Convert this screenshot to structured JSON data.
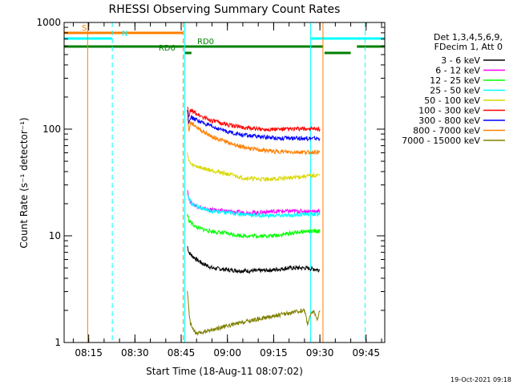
{
  "chart_data": {
    "type": "line",
    "title": "RHESSI Observing Summary Count Rates",
    "xlabel": "Start Time (18-Aug-11 08:07:02)",
    "ylabel": "Count Rate (s⁻¹ detector⁻¹)",
    "yscale": "log",
    "ylim": [
      1,
      1000
    ],
    "xlim": [
      "08:07:02",
      "09:51:02"
    ],
    "x_tick_labels": [
      "08:15",
      "08:30",
      "08:45",
      "09:00",
      "09:15",
      "09:30",
      "09:45"
    ],
    "y_tick_labels": [
      "1",
      "10",
      "100",
      "1000"
    ],
    "legend": {
      "placement": "right",
      "header": [
        "Det 1,3,4,5,6,9,",
        "FDecim 1, Att 0"
      ]
    },
    "series": [
      {
        "name": "3 - 6 keV",
        "color": "#000000",
        "x": [
          "08:47:00",
          "08:47:30",
          "08:48:30",
          "08:50:00",
          "08:52:00",
          "08:55:00",
          "09:00:00",
          "09:05:00",
          "09:10:00",
          "09:15:00",
          "09:20:00",
          "09:25:00",
          "09:30:00"
        ],
        "values": [
          8,
          7,
          6.5,
          6,
          5.5,
          5,
          4.8,
          4.7,
          4.7,
          4.8,
          5,
          5,
          4.8
        ]
      },
      {
        "name": "6 - 12 keV",
        "color": "#ff00ff",
        "x": [
          "08:47:00",
          "08:47:30",
          "08:48:30",
          "08:50:00",
          "08:52:00",
          "08:55:00",
          "09:00:00",
          "09:05:00",
          "09:10:00",
          "09:15:00",
          "09:20:00",
          "09:25:00",
          "09:30:00"
        ],
        "values": [
          28,
          22,
          20,
          19,
          18,
          17.5,
          17,
          16.5,
          16.5,
          17,
          17,
          17,
          17
        ]
      },
      {
        "name": "12 - 25 keV",
        "color": "#00ff00",
        "x": [
          "08:47:00",
          "08:47:30",
          "08:48:30",
          "08:50:00",
          "08:52:00",
          "08:55:00",
          "09:00:00",
          "09:05:00",
          "09:10:00",
          "09:15:00",
          "09:20:00",
          "09:25:00",
          "09:30:00"
        ],
        "values": [
          16,
          14,
          13,
          12,
          11.5,
          11,
          10.5,
          10,
          10,
          10,
          10.5,
          11,
          11
        ]
      },
      {
        "name": "25 - 50 keV",
        "color": "#00ffff",
        "x": [
          "08:47:00",
          "08:47:30",
          "08:48:30",
          "08:50:00",
          "08:52:00",
          "08:55:00",
          "09:00:00",
          "09:05:00",
          "09:10:00",
          "09:15:00",
          "09:20:00",
          "09:25:00",
          "09:30:00"
        ],
        "values": [
          26,
          22,
          20,
          19,
          18,
          17,
          16.5,
          16,
          15.5,
          15.5,
          15.5,
          16,
          16
        ]
      },
      {
        "name": "50 - 100 keV",
        "color": "#d8d800",
        "x": [
          "08:47:00",
          "08:47:30",
          "08:48:30",
          "08:50:00",
          "08:52:00",
          "08:55:00",
          "09:00:00",
          "09:05:00",
          "09:10:00",
          "09:15:00",
          "09:20:00",
          "09:25:00",
          "09:30:00"
        ],
        "values": [
          60,
          50,
          46,
          45,
          43,
          41,
          38,
          35,
          34,
          34,
          35,
          36,
          37
        ]
      },
      {
        "name": "100 - 300 keV",
        "color": "#ff0000",
        "x": [
          "08:47:00",
          "08:47:30",
          "08:48:00",
          "08:49:00",
          "08:50:00",
          "08:52:00",
          "08:55:00",
          "09:00:00",
          "09:05:00",
          "09:10:00",
          "09:15:00",
          "09:20:00",
          "09:25:00",
          "09:30:00"
        ],
        "values": [
          165,
          125,
          150,
          145,
          140,
          130,
          120,
          110,
          104,
          100,
          100,
          100,
          101,
          100
        ]
      },
      {
        "name": "300 - 800 keV",
        "color": "#0000ff",
        "x": [
          "08:47:00",
          "08:47:30",
          "08:48:00",
          "08:49:00",
          "08:50:00",
          "08:52:00",
          "08:55:00",
          "09:00:00",
          "09:05:00",
          "09:10:00",
          "09:15:00",
          "09:20:00",
          "09:25:00",
          "09:30:00"
        ],
        "values": [
          150,
          115,
          130,
          125,
          122,
          115,
          105,
          95,
          88,
          85,
          83,
          82,
          82,
          82
        ]
      },
      {
        "name": "800 - 7000 keV",
        "color": "#ff8000",
        "x": [
          "08:47:00",
          "08:47:30",
          "08:48:00",
          "08:49:00",
          "08:50:00",
          "08:52:00",
          "08:55:00",
          "09:00:00",
          "09:05:00",
          "09:10:00",
          "09:15:00",
          "09:20:00",
          "09:25:00",
          "09:30:00"
        ],
        "values": [
          130,
          95,
          115,
          110,
          105,
          95,
          85,
          75,
          68,
          64,
          62,
          61,
          61,
          61
        ]
      },
      {
        "name": "7000 - 15000 keV",
        "color": "#808000",
        "x": [
          "08:47:00",
          "08:47:30",
          "08:48:00",
          "08:49:00",
          "08:50:00",
          "09:25:00",
          "09:26:00",
          "09:27:00",
          "09:28:00",
          "09:29:00",
          "09:30:00"
        ],
        "values": [
          3,
          2,
          1.5,
          1.3,
          1.2,
          2,
          1.5,
          1.8,
          2,
          1.6,
          2
        ]
      }
    ],
    "flags": [
      {
        "label": "S",
        "color": "#ff8000",
        "start": "08:07:02",
        "end": "08:45:40",
        "dashed": false
      },
      {
        "label": "N",
        "color": "#00ffff",
        "start": "08:07:02",
        "end": "08:22:40",
        "dashed": false
      },
      {
        "label": "N",
        "color": "#00ffff",
        "start": "09:27:00",
        "end": "09:51:02",
        "dashed": false
      },
      {
        "label": "RD0",
        "color": "#008000",
        "start": "08:07:02",
        "end": "09:31:00",
        "dashed": false
      },
      {
        "label": "RD0",
        "color": "#008000",
        "start": "09:42:00",
        "end": "09:51:02",
        "dashed": false
      },
      {
        "label": "RD6",
        "color": "#008000",
        "start": "08:46:00",
        "end": "08:48:20",
        "dashed": false
      },
      {
        "label": "RD6",
        "color": "#008000",
        "start": "09:31:30",
        "end": "09:40:00",
        "dashed": false
      }
    ],
    "vertical_markers": [
      {
        "time": "08:07:02",
        "color": "#00ffff",
        "dashed": false
      },
      {
        "time": "08:14:40",
        "color": "#ff8000",
        "dashed": false
      },
      {
        "time": "08:22:40",
        "color": "#00ffff",
        "dashed": true
      },
      {
        "time": "08:45:40",
        "color": "#ff8000",
        "dashed": true
      },
      {
        "time": "08:46:10",
        "color": "#00ffff",
        "dashed": false
      },
      {
        "time": "09:27:00",
        "color": "#00ffff",
        "dashed": false
      },
      {
        "time": "09:31:00",
        "color": "#ff8000",
        "dashed": false
      },
      {
        "time": "09:44:40",
        "color": "#00ffff",
        "dashed": true
      }
    ]
  },
  "footer": {
    "timestamp": "19-Oct-2021 09:18"
  }
}
